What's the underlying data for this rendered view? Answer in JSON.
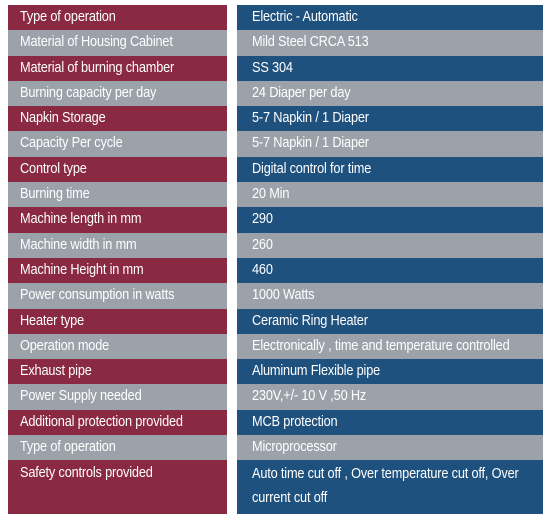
{
  "specifications": [
    {
      "label": "Type of operation",
      "value": "Electric - Automatic"
    },
    {
      "label": "Material of Housing Cabinet",
      "value": "Mild Steel CRCA 513"
    },
    {
      "label": "Material of burning chamber",
      "value": "SS 304"
    },
    {
      "label": "Burning capacity per day",
      "value": "24 Diaper per day"
    },
    {
      "label": "Napkin Storage",
      "value": "5-7 Napkin / 1 Diaper"
    },
    {
      "label": "Capacity Per cycle",
      "value": "5-7 Napkin / 1 Diaper"
    },
    {
      "label": "Control type",
      "value": "Digital control for time"
    },
    {
      "label": "Burning time",
      "value": "20 Min"
    },
    {
      "label": "Machine length in mm",
      "value": "290"
    },
    {
      "label": "Machine width in mm",
      "value": "260"
    },
    {
      "label": "Machine Height in mm",
      "value": "460"
    },
    {
      "label": "Power consumption in watts",
      "value": "1000 Watts"
    },
    {
      "label": "Heater type",
      "value": "Ceramic Ring Heater"
    },
    {
      "label": "Operation mode",
      "value": "Electronically , time and temperature controlled"
    },
    {
      "label": "Exhaust pipe",
      "value": "Aluminum Flexible pipe"
    },
    {
      "label": "Power Supply needed",
      "value": "230V,+/- 10 V ,50 Hz"
    },
    {
      "label": "Additional protection provided",
      "value": "MCB protection"
    },
    {
      "label": "Type of operation",
      "value": "Microprocessor"
    },
    {
      "label": "Safety controls provided",
      "value": "Auto time cut off , Over temperature cut off, Over current cut off"
    }
  ],
  "colors": {
    "label_odd": "#8a2942",
    "value_odd": "#1f517e",
    "row_even": "#9ba2aa",
    "text": "#ffffff"
  }
}
